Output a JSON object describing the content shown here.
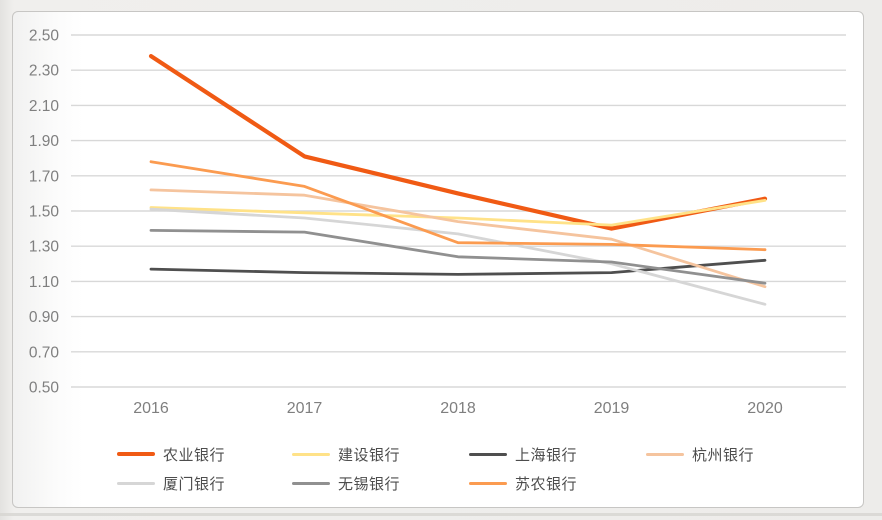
{
  "page": {
    "background_color": "#edecea",
    "card_background": "#ffffff",
    "card_border_color": "#c7c6c4"
  },
  "chart_data": {
    "type": "line",
    "title": "",
    "xlabel": "",
    "ylabel": "",
    "categories": [
      "2016",
      "2017",
      "2018",
      "2019",
      "2020"
    ],
    "ylim": [
      0.5,
      2.5
    ],
    "y_tick_step": 0.2,
    "y_tick_labels": [
      "2.50",
      "2.30",
      "2.10",
      "1.90",
      "1.70",
      "1.50",
      "1.30",
      "1.10",
      "0.90",
      "0.70",
      "0.50"
    ],
    "grid": "horizontal",
    "gridline_color": "#d8d8d8",
    "tick_label_color": "#7f7f7f",
    "legend_position": "bottom",
    "series": [
      {
        "name": "农业银行",
        "color": "#F05A14",
        "line_width": 4.2,
        "values": [
          2.38,
          1.81,
          1.6,
          1.4,
          1.57
        ]
      },
      {
        "name": "建设银行",
        "color": "#FFE288",
        "line_width": 2.8,
        "values": [
          1.52,
          1.49,
          1.46,
          1.42,
          1.56
        ]
      },
      {
        "name": "上海银行",
        "color": "#4F4F4F",
        "line_width": 2.8,
        "values": [
          1.17,
          1.15,
          1.14,
          1.15,
          1.22
        ]
      },
      {
        "name": "杭州银行",
        "color": "#F5C49E",
        "line_width": 2.8,
        "values": [
          1.62,
          1.59,
          1.44,
          1.34,
          1.07
        ]
      },
      {
        "name": "厦门银行",
        "color": "#D6D6D6",
        "line_width": 2.8,
        "values": [
          1.51,
          1.46,
          1.37,
          1.2,
          0.97
        ]
      },
      {
        "name": "无锡银行",
        "color": "#909090",
        "line_width": 2.8,
        "values": [
          1.39,
          1.38,
          1.24,
          1.21,
          1.09
        ]
      },
      {
        "name": "苏农银行",
        "color": "#FB9B50",
        "line_width": 2.8,
        "values": [
          1.78,
          1.64,
          1.32,
          1.31,
          1.28
        ]
      }
    ],
    "legend": {
      "rows": [
        [
          "农业银行",
          "建设银行",
          "上海银行",
          "杭州银行"
        ],
        [
          "厦门银行",
          "无锡银行",
          "苏农银行"
        ]
      ],
      "text_color": "#4d4d4d"
    }
  }
}
